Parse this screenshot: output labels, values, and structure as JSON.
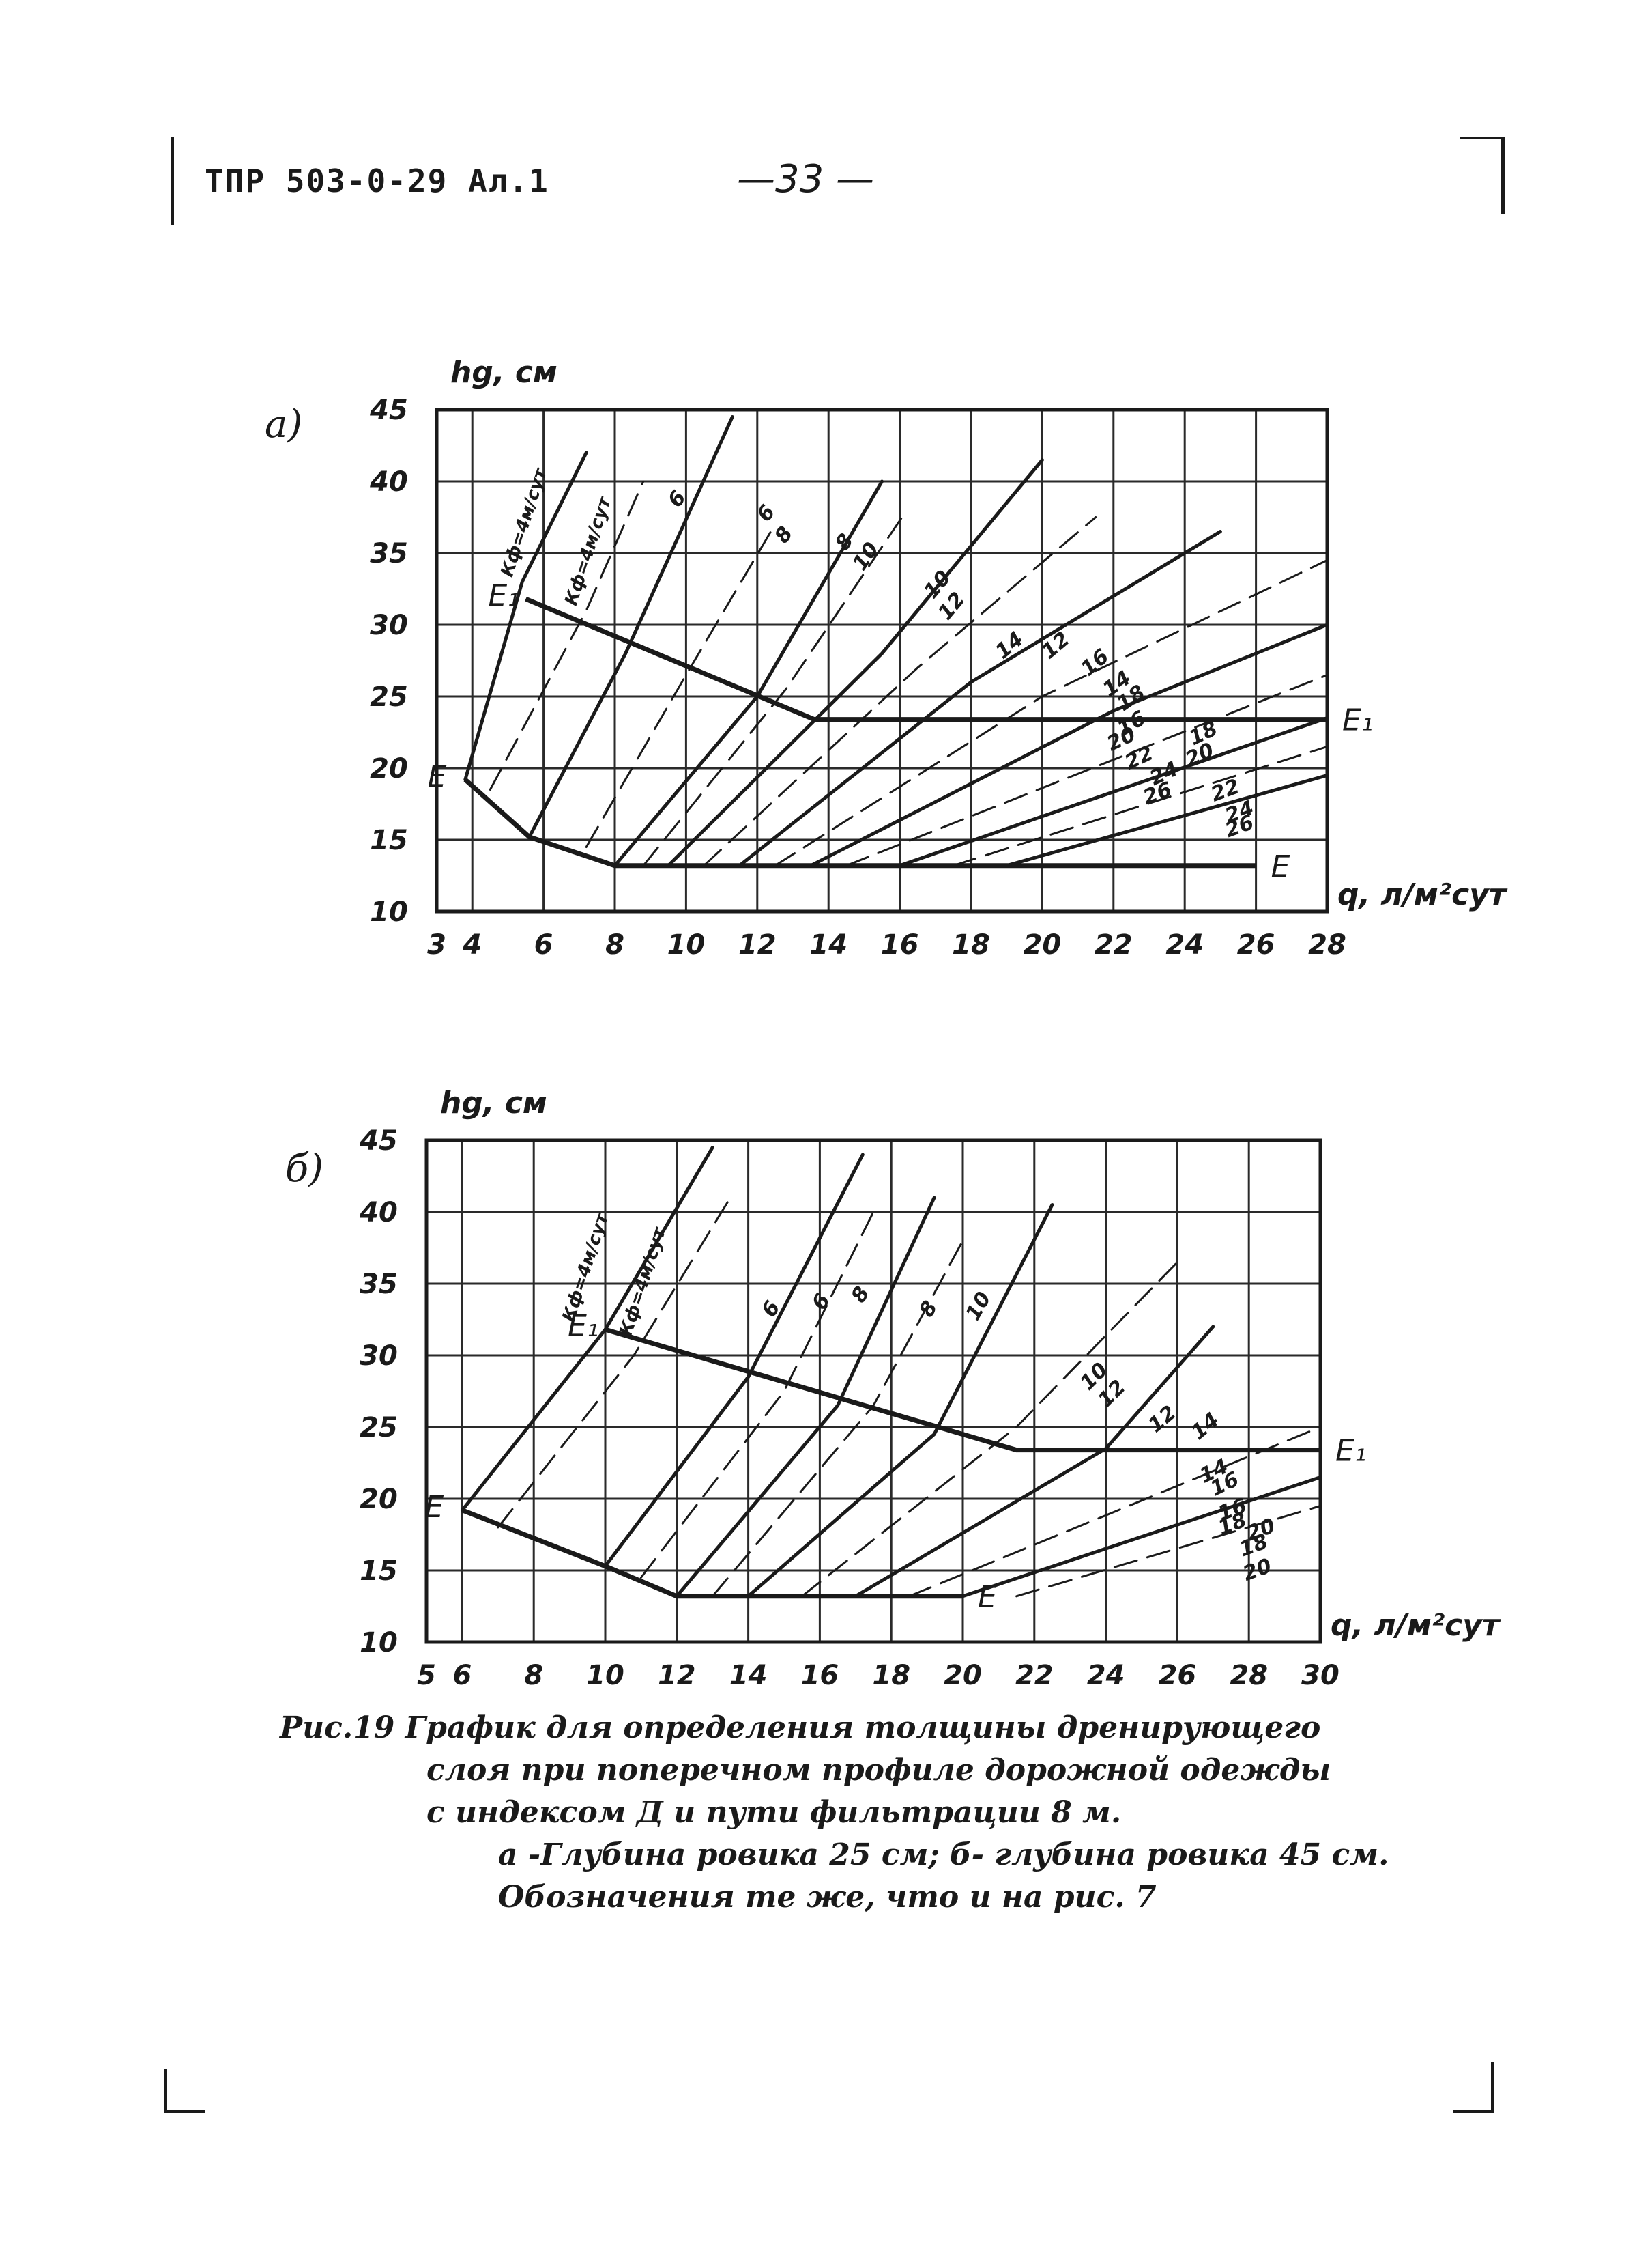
{
  "header": {
    "doc_code": "ТПР 503-0-29 Ал.1",
    "page_number": "—33 —"
  },
  "caption": {
    "line1": "Рис.19 График для определения толщины дренирующего",
    "line2": "слоя при поперечном профиле дорожной одежды",
    "line3": "с индексом Д и пути фильтрации 8 м.",
    "line4": "а -Глубина ровика 25 см; б- глубина ровика 45 см.",
    "line5": "Обозначения те же, что и на рис. 7"
  },
  "chart_data": [
    {
      "panel_label": "а)",
      "type": "line",
      "ylabel": "hg, см",
      "xlabel": "q, л/м²сут",
      "xlim": [
        3,
        28
      ],
      "ylim": [
        10,
        45
      ],
      "xticks": [
        3,
        4,
        6,
        8,
        10,
        12,
        14,
        16,
        18,
        20,
        22,
        24,
        26,
        28
      ],
      "xtick_labels": [
        "3",
        "4",
        "6",
        "8",
        "10",
        "12",
        "14",
        "16",
        "18",
        "20",
        "22",
        "24",
        "26",
        "28"
      ],
      "yticks": [
        10,
        15,
        20,
        25,
        30,
        35,
        40,
        45
      ],
      "grid": true,
      "boundaries": [
        {
          "name": "E₁",
          "points": [
            [
              5.5,
              31.8
            ],
            [
              13.6,
              23.4
            ],
            [
              28,
              23.4
            ]
          ],
          "label_at": "both-ends"
        },
        {
          "name": "E",
          "points": [
            [
              3.8,
              19.2
            ],
            [
              5.6,
              15.2
            ],
            [
              8,
              13.2
            ],
            [
              26,
              13.2
            ]
          ],
          "label_at": "both-ends"
        }
      ],
      "series": [
        {
          "name": "Кф=4м/сут",
          "dash": false,
          "values": [
            [
              3.8,
              19.2
            ],
            [
              5.4,
              33
            ],
            [
              7.2,
              42
            ]
          ]
        },
        {
          "name": "Кф=4м/сут",
          "dash": true,
          "values": [
            [
              4.5,
              18.5
            ],
            [
              7.2,
              31
            ],
            [
              8.8,
              40
            ]
          ]
        },
        {
          "name": "6",
          "dash": false,
          "values": [
            [
              5.6,
              15.2
            ],
            [
              8.3,
              28
            ],
            [
              11.3,
              44.5
            ]
          ]
        },
        {
          "name": "6",
          "dash": true,
          "values": [
            [
              7.2,
              14.5
            ],
            [
              10,
              26.5
            ],
            [
              12.5,
              37
            ]
          ]
        },
        {
          "name": "8",
          "dash": false,
          "values": [
            [
              8,
              13.2
            ],
            [
              12,
              25
            ],
            [
              15.5,
              40
            ]
          ]
        },
        {
          "name": "8",
          "dash": true,
          "values": [
            [
              8.8,
              13.2
            ],
            [
              12.8,
              25.5
            ],
            [
              16.2,
              38
            ]
          ]
        },
        {
          "name": "10",
          "dash": false,
          "values": [
            [
              9.5,
              13.2
            ],
            [
              15.5,
              28
            ],
            [
              20,
              41.5
            ]
          ]
        },
        {
          "name": "12",
          "dash": true,
          "values": [
            [
              10.5,
              13.2
            ],
            [
              16.5,
              27
            ],
            [
              21.5,
              37.5
            ]
          ]
        },
        {
          "name": "14",
          "dash": false,
          "values": [
            [
              11.5,
              13.2
            ],
            [
              18,
              26
            ],
            [
              25,
              36.5
            ]
          ]
        },
        {
          "name": "16",
          "dash": true,
          "values": [
            [
              12.5,
              13.2
            ],
            [
              20,
              25
            ],
            [
              28,
              34.5
            ]
          ]
        },
        {
          "name": "18",
          "dash": false,
          "values": [
            [
              13.5,
              13.2
            ],
            [
              22,
              24
            ],
            [
              28,
              30
            ]
          ]
        },
        {
          "name": "20",
          "dash": true,
          "values": [
            [
              14.5,
              13.2
            ],
            [
              28,
              26.5
            ]
          ]
        },
        {
          "name": "22",
          "dash": false,
          "values": [
            [
              16,
              13.2
            ],
            [
              28,
              23.5
            ]
          ]
        },
        {
          "name": "24",
          "dash": true,
          "values": [
            [
              17.5,
              13.2
            ],
            [
              28,
              21.5
            ]
          ]
        },
        {
          "name": "26",
          "dash": false,
          "values": [
            [
              19,
              13.2
            ],
            [
              28,
              19.5
            ]
          ]
        }
      ],
      "curve_labels": [
        {
          "text": "Кф=4м/сут",
          "at": [
            5.6,
            37
          ],
          "rotate": -72
        },
        {
          "text": "Кф=4м/сут",
          "at": [
            7.4,
            35
          ],
          "rotate": -72
        },
        {
          "text": "6",
          "at": [
            9.9,
            38.5
          ],
          "rotate": -55
        },
        {
          "text": "6",
          "at": [
            12.4,
            37.5
          ],
          "rotate": -55
        },
        {
          "text": "8",
          "at": [
            12.9,
            36
          ],
          "rotate": -55
        },
        {
          "text": "8",
          "at": [
            14.6,
            35.5
          ],
          "rotate": -55
        },
        {
          "text": "10",
          "at": [
            15.2,
            34.5
          ],
          "rotate": -55
        },
        {
          "text": "10",
          "at": [
            17.2,
            32.5
          ],
          "rotate": -50
        },
        {
          "text": "12",
          "at": [
            17.6,
            31
          ],
          "rotate": -50
        },
        {
          "text": "14",
          "at": [
            19.2,
            28.2
          ],
          "rotate": -40
        },
        {
          "text": "12",
          "at": [
            20.5,
            28.2
          ],
          "rotate": -40
        },
        {
          "text": "16",
          "at": [
            21.6,
            27
          ],
          "rotate": -40
        },
        {
          "text": "14",
          "at": [
            22.2,
            25.5
          ],
          "rotate": -35
        },
        {
          "text": "18",
          "at": [
            22.6,
            24.5
          ],
          "rotate": -35
        },
        {
          "text": "16",
          "at": [
            22.6,
            22.7
          ],
          "rotate": -30
        },
        {
          "text": "20",
          "at": [
            22.3,
            21.6
          ],
          "rotate": -25
        },
        {
          "text": "18",
          "at": [
            24.6,
            22
          ],
          "rotate": -25
        },
        {
          "text": "22",
          "at": [
            22.8,
            20.3
          ],
          "rotate": -25
        },
        {
          "text": "20",
          "at": [
            24.5,
            20.5
          ],
          "rotate": -25
        },
        {
          "text": "24",
          "at": [
            23.5,
            19.2
          ],
          "rotate": -25
        },
        {
          "text": "26",
          "at": [
            23.3,
            17.8
          ],
          "rotate": -20
        },
        {
          "text": "22",
          "at": [
            25.2,
            18
          ],
          "rotate": -20
        },
        {
          "text": "24",
          "at": [
            25.6,
            16.5
          ],
          "rotate": -20
        },
        {
          "text": "26",
          "at": [
            25.6,
            15.5
          ],
          "rotate": -20
        }
      ]
    },
    {
      "panel_label": "б)",
      "type": "line",
      "ylabel": "hg, см",
      "xlabel": "q, л/м²сут",
      "xlim": [
        5,
        30
      ],
      "ylim": [
        10,
        45
      ],
      "xticks": [
        5,
        6,
        8,
        10,
        12,
        14,
        16,
        18,
        20,
        22,
        24,
        26,
        28,
        30
      ],
      "xtick_labels": [
        "5",
        "6",
        "8",
        "10",
        "12",
        "14",
        "16",
        "18",
        "20",
        "22",
        "24",
        "26",
        "28",
        "30"
      ],
      "yticks": [
        10,
        15,
        20,
        25,
        30,
        35,
        40,
        45
      ],
      "grid": true,
      "boundaries": [
        {
          "name": "E₁",
          "points": [
            [
              10,
              31.8
            ],
            [
              21.5,
              23.4
            ],
            [
              30,
              23.4
            ]
          ],
          "label_at": "both-ends"
        },
        {
          "name": "E",
          "points": [
            [
              6,
              19.2
            ],
            [
              10,
              15.3
            ],
            [
              12,
              13.2
            ],
            [
              20,
              13.2
            ]
          ],
          "label_at": "both-ends"
        }
      ],
      "series": [
        {
          "name": "Кф=4м/сут",
          "dash": false,
          "values": [
            [
              6,
              19.2
            ],
            [
              10,
              31.8
            ],
            [
              13,
              44.5
            ]
          ]
        },
        {
          "name": "Кф=4м/сут",
          "dash": true,
          "values": [
            [
              7,
              18
            ],
            [
              10.8,
              30
            ],
            [
              13.5,
              41
            ]
          ]
        },
        {
          "name": "6",
          "dash": false,
          "values": [
            [
              10,
              15.3
            ],
            [
              14,
              28.5
            ],
            [
              17.2,
              44
            ]
          ]
        },
        {
          "name": "6",
          "dash": true,
          "values": [
            [
              11,
              14.5
            ],
            [
              15,
              27.5
            ],
            [
              17.5,
              40
            ]
          ]
        },
        {
          "name": "8",
          "dash": false,
          "values": [
            [
              12,
              13.2
            ],
            [
              16.5,
              26.5
            ],
            [
              19.2,
              41
            ]
          ]
        },
        {
          "name": "8",
          "dash": true,
          "values": [
            [
              13,
              13.2
            ],
            [
              17.5,
              26.5
            ],
            [
              20,
              38
            ]
          ]
        },
        {
          "name": "10",
          "dash": false,
          "values": [
            [
              14,
              13.2
            ],
            [
              19.2,
              24.5
            ],
            [
              22.5,
              40.5
            ]
          ]
        },
        {
          "name": "12",
          "dash": true,
          "values": [
            [
              15.5,
              13.2
            ],
            [
              21.5,
              25
            ],
            [
              26,
              36.5
            ]
          ]
        },
        {
          "name": "14",
          "dash": false,
          "values": [
            [
              17,
              13.2
            ],
            [
              24,
              23.5
            ],
            [
              27,
              32
            ]
          ]
        },
        {
          "name": "16",
          "dash": true,
          "values": [
            [
              18.5,
              13.2
            ],
            [
              30,
              25
            ]
          ]
        },
        {
          "name": "18",
          "dash": false,
          "values": [
            [
              20,
              13.2
            ],
            [
              30,
              21.5
            ]
          ]
        },
        {
          "name": "20",
          "dash": true,
          "values": [
            [
              21.5,
              13.2
            ],
            [
              30,
              19.5
            ]
          ]
        }
      ],
      "curve_labels": [
        {
          "text": "Кф=4м/сут",
          "at": [
            9.6,
            36
          ],
          "rotate": -72
        },
        {
          "text": "Кф=4м/сут",
          "at": [
            11.2,
            35
          ],
          "rotate": -72
        },
        {
          "text": "6",
          "at": [
            14.8,
            33
          ],
          "rotate": -60
        },
        {
          "text": "6",
          "at": [
            16.2,
            33.5
          ],
          "rotate": -60
        },
        {
          "text": "8",
          "at": [
            17.3,
            34
          ],
          "rotate": -60
        },
        {
          "text": "8",
          "at": [
            19.2,
            33
          ],
          "rotate": -60
        },
        {
          "text": "10",
          "at": [
            20.6,
            33.2
          ],
          "rotate": -60
        },
        {
          "text": "10",
          "at": [
            23.8,
            28.2
          ],
          "rotate": -45
        },
        {
          "text": "12",
          "at": [
            24.3,
            27
          ],
          "rotate": -45
        },
        {
          "text": "12",
          "at": [
            25.7,
            25.2
          ],
          "rotate": -40
        },
        {
          "text": "14",
          "at": [
            26.9,
            24.7
          ],
          "rotate": -40
        },
        {
          "text": "14",
          "at": [
            27.1,
            21.5
          ],
          "rotate": -25
        },
        {
          "text": "16",
          "at": [
            27.4,
            20.6
          ],
          "rotate": -25
        },
        {
          "text": "16",
          "at": [
            27.6,
            18.8
          ],
          "rotate": -20
        },
        {
          "text": "18",
          "at": [
            27.6,
            17.8
          ],
          "rotate": -20
        },
        {
          "text": "20",
          "at": [
            28.4,
            17.4
          ],
          "rotate": -20
        },
        {
          "text": "18",
          "at": [
            28.2,
            16.3
          ],
          "rotate": -20
        },
        {
          "text": "20",
          "at": [
            28.3,
            14.6
          ],
          "rotate": -20
        }
      ]
    }
  ],
  "colors": {
    "ink": "#1a1a1a",
    "grid": "#2a2a2a",
    "paper": "#ffffff"
  }
}
